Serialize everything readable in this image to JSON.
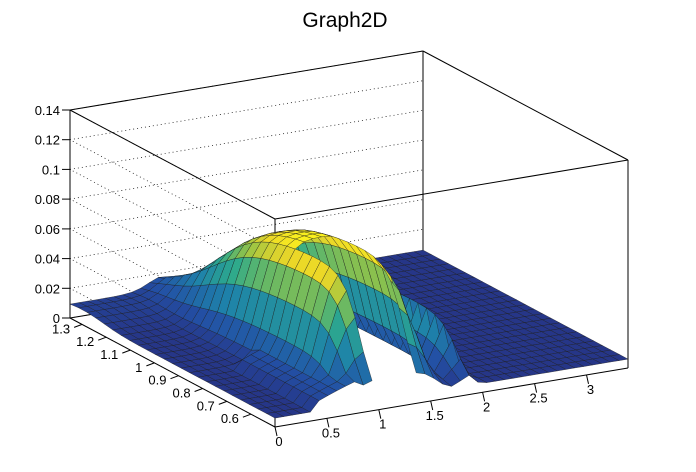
{
  "chart_data": {
    "type": "surface",
    "title": "Graph2D",
    "xlabel": "",
    "ylabel": "",
    "zlabel": "",
    "xlim": [
      0,
      3.4
    ],
    "ylim": [
      0.5,
      1.35
    ],
    "zlim": [
      0,
      0.14
    ],
    "x_ticks": [
      "0",
      "0.5",
      "1",
      "1.5",
      "2",
      "2.5",
      "3"
    ],
    "y_ticks": [
      "0.6",
      "0.7",
      "0.8",
      "0.9",
      "1",
      "1.1",
      "1.2",
      "1.3"
    ],
    "z_ticks": [
      "0",
      "0.02",
      "0.04",
      "0.06",
      "0.08",
      "0.1",
      "0.12",
      "0.14"
    ],
    "x_tick_values": [
      0,
      0.5,
      1,
      1.5,
      2,
      2.5,
      3
    ],
    "y_tick_values": [
      0.6,
      0.7,
      0.8,
      0.9,
      1.0,
      1.1,
      1.2,
      1.3
    ],
    "z_tick_values": [
      0,
      0.02,
      0.04,
      0.06,
      0.08,
      0.1,
      0.12,
      0.14
    ],
    "grid": true,
    "colormap": "viridis-like (blue to green to yellow)",
    "colors": {
      "low": "#283c8c",
      "mid": "#2ea896",
      "high": "#f5e61e",
      "axis": "#000000"
    },
    "surface_summary": {
      "peak_z": 0.085,
      "peak_region_x": [
        0.8,
        1.5
      ],
      "peak_region_y": [
        0.6,
        1.1
      ],
      "gap_region_x": [
        1.0,
        1.35
      ],
      "gap_region_y": [
        0.5,
        0.8
      ]
    }
  }
}
